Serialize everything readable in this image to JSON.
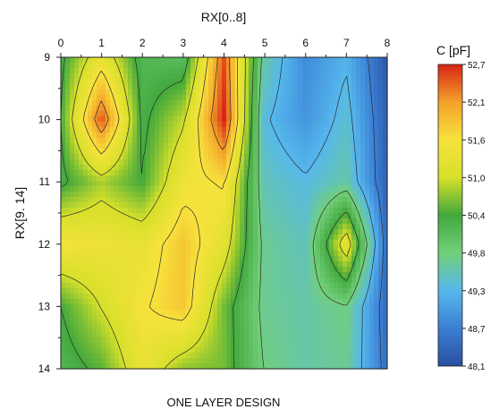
{
  "chart_data": {
    "type": "heatmap",
    "title": "ONE LAYER DESIGN",
    "xlabel": "RX[0..8]",
    "ylabel": "RX[9. 14]",
    "x": [
      0,
      1,
      2,
      3,
      4,
      5,
      6,
      7,
      8
    ],
    "y": [
      9,
      10,
      11,
      12,
      13,
      14
    ],
    "x_ticks": [
      "0",
      "1",
      "2",
      "3",
      "4",
      "5",
      "6",
      "7",
      "8"
    ],
    "y_ticks": [
      "9",
      "10",
      "11",
      "12",
      "13",
      "14"
    ],
    "colorbar": {
      "title": "C [pF]",
      "ticks": [
        "52,7",
        "52,1",
        "51,6",
        "51,0",
        "50,4",
        "49,8",
        "49,3",
        "48,7",
        "48,1"
      ],
      "min": 48.1,
      "max": 52.7
    },
    "colors": [
      "#2a4fa0",
      "#3a7fd5",
      "#56b8ec",
      "#72cf7b",
      "#42a93c",
      "#d6e02a",
      "#f7e23c",
      "#f4a12a",
      "#d82416"
    ],
    "values": [
      [
        50.3,
        51.3,
        50.2,
        50.1,
        52.5,
        49.6,
        48.8,
        49.2,
        48.2
      ],
      [
        50.4,
        52.5,
        50.3,
        50.9,
        52.7,
        49.3,
        48.9,
        49.4,
        48.3
      ],
      [
        50.3,
        50.8,
        50.4,
        51.4,
        51.6,
        49.5,
        49.3,
        49.6,
        48.3
      ],
      [
        51.5,
        51.4,
        51.3,
        51.8,
        51.2,
        49.7,
        49.5,
        51.3,
        48.4
      ],
      [
        50.4,
        51.0,
        51.5,
        51.8,
        50.6,
        49.7,
        49.6,
        49.8,
        48.4
      ],
      [
        50.2,
        50.5,
        51.3,
        50.7,
        50.6,
        49.8,
        49.6,
        49.7,
        48.5
      ]
    ]
  }
}
